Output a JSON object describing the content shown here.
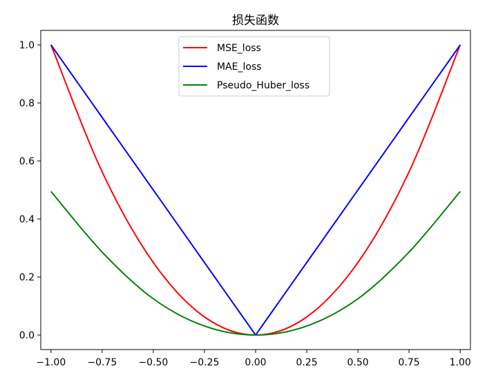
{
  "chart_data": {
    "type": "line",
    "title": "损失函数",
    "xlabel": "",
    "ylabel": "",
    "xlim": [
      -1.05,
      1.05
    ],
    "ylim": [
      -0.05,
      1.05
    ],
    "grid": false,
    "legend_position": "top-center",
    "x_ticks": [
      -1.0,
      -0.75,
      -0.5,
      -0.25,
      0.0,
      0.25,
      0.5,
      0.75,
      1.0
    ],
    "x_tick_labels": [
      "−1.00",
      "−0.75",
      "−0.50",
      "−0.25",
      "0.00",
      "0.25",
      "0.50",
      "0.75",
      "1.00"
    ],
    "y_ticks": [
      0.0,
      0.2,
      0.4,
      0.6,
      0.8,
      1.0
    ],
    "y_tick_labels": [
      "0.0",
      "0.2",
      "0.4",
      "0.6",
      "0.8",
      "1.0"
    ],
    "x": [
      -1.0,
      -0.75,
      -0.5,
      -0.25,
      0.0,
      0.25,
      0.5,
      0.75,
      1.0
    ],
    "series": [
      {
        "name": "MSE_loss",
        "color": "#ff0000",
        "values": [
          1.0,
          0.5625,
          0.25,
          0.0625,
          0.0,
          0.0625,
          0.25,
          0.5625,
          1.0
        ]
      },
      {
        "name": "MAE_loss",
        "color": "#0000ff",
        "values": [
          1.0,
          0.75,
          0.5,
          0.25,
          0.0,
          0.25,
          0.5,
          0.75,
          1.0
        ]
      },
      {
        "name": "Pseudo_Huber_loss",
        "color": "#008000",
        "values": [
          0.495,
          0.286,
          0.125,
          0.031,
          0.0,
          0.031,
          0.125,
          0.286,
          0.495
        ]
      }
    ]
  }
}
